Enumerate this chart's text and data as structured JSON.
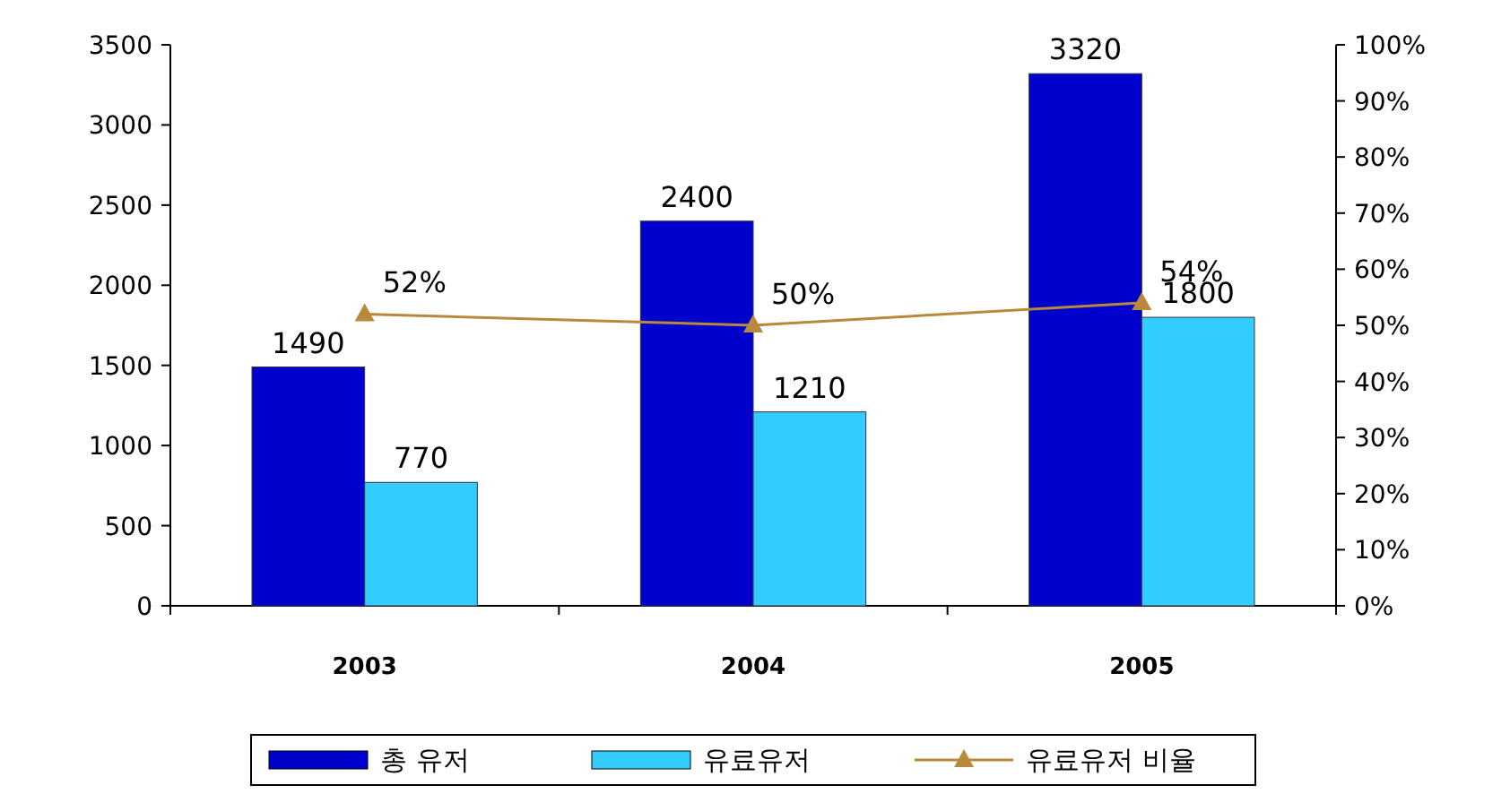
{
  "chart_data": {
    "type": "bar",
    "categories": [
      "2003",
      "2004",
      "2005"
    ],
    "series": [
      {
        "name": "총 유저",
        "color": "#0000cc",
        "values": [
          1490,
          2400,
          3320
        ]
      },
      {
        "name": "유료유저",
        "color": "#33ccff",
        "values": [
          770,
          1210,
          1800
        ]
      },
      {
        "name": "유료유저 비율",
        "type": "line",
        "axis": "y2",
        "color": "#b8893a",
        "marker": "triangle",
        "values": [
          52,
          50,
          54
        ],
        "value_labels": [
          "52%",
          "50%",
          "54%"
        ]
      }
    ],
    "ylim": [
      0,
      3500
    ],
    "yticks": [
      0,
      500,
      1000,
      1500,
      2000,
      2500,
      3000,
      3500
    ],
    "y2lim": [
      0,
      100
    ],
    "y2ticks": [
      {
        "value": 0,
        "label": "0%"
      },
      {
        "value": 10,
        "label": "10%"
      },
      {
        "value": 20,
        "label": "20%"
      },
      {
        "value": 30,
        "label": "30%"
      },
      {
        "value": 40,
        "label": "40%"
      },
      {
        "value": 50,
        "label": "50%"
      },
      {
        "value": 60,
        "label": "60%"
      },
      {
        "value": 70,
        "label": "70%"
      },
      {
        "value": 80,
        "label": "80%"
      },
      {
        "value": 90,
        "label": "90%"
      },
      {
        "value": 100,
        "label": "100%"
      }
    ],
    "data_labels": true,
    "legend": "bottom",
    "grid": false
  }
}
